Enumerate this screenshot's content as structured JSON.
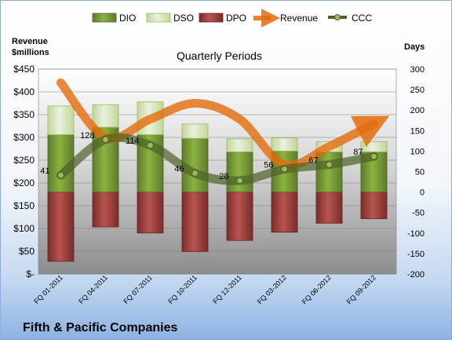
{
  "chart_data": {
    "type": "bar",
    "title": "Quarterly Periods",
    "company": "Fifth & Pacific Companies",
    "ylabel_left": [
      "Revenue",
      "$millions"
    ],
    "ylabel_right": "Days",
    "categories": [
      "FQ 01-2011",
      "FQ 04-2011",
      "FQ 07-2011",
      "FQ 10-2011",
      "FQ 12-2011",
      "FQ 03-2012",
      "FQ 06-2012",
      "FQ 09-2012"
    ],
    "left_axis": {
      "range": [
        0,
        450
      ],
      "ticks": [
        "$-",
        "$50",
        "$100",
        "$150",
        "$200",
        "$250",
        "$300",
        "$350",
        "$400",
        "$450"
      ]
    },
    "right_axis": {
      "range": [
        -200,
        300
      ],
      "ticks": [
        "-200",
        "-150",
        "-100",
        "-50",
        "0",
        "50",
        "100",
        "150",
        "200",
        "250",
        "300"
      ]
    },
    "series": [
      {
        "name": "DIO",
        "axis": "right",
        "values": [
          140,
          158,
          140,
          131,
          98,
          100,
          98,
          98
        ]
      },
      {
        "name": "DSO",
        "axis": "right",
        "values": [
          70,
          55,
          80,
          35,
          32,
          32,
          25,
          25
        ]
      },
      {
        "name": "DPO",
        "axis": "right",
        "values": [
          -169,
          -85,
          -100,
          -145,
          -118,
          -98,
          -76,
          -65
        ]
      },
      {
        "name": "Revenue",
        "axis": "left",
        "values": [
          420,
          300,
          340,
          375,
          340,
          240,
          280,
          330
        ]
      },
      {
        "name": "CCC",
        "axis": "right",
        "values": [
          41,
          128,
          114,
          46,
          28,
          56,
          67,
          87
        ]
      }
    ],
    "ccc_labels": [
      "41",
      "128",
      "114",
      "46",
      "28",
      "56",
      "67",
      "87"
    ],
    "legend": [
      "DIO",
      "DSO",
      "DPO",
      "Revenue",
      "CCC"
    ],
    "legend_position": "top",
    "grid": true,
    "colors": {
      "DIO": "#77933c",
      "DSO": "#d7e4bd",
      "DPO": "#953735",
      "Revenue": "#e46c0a",
      "CCC": "#4f6228"
    }
  }
}
